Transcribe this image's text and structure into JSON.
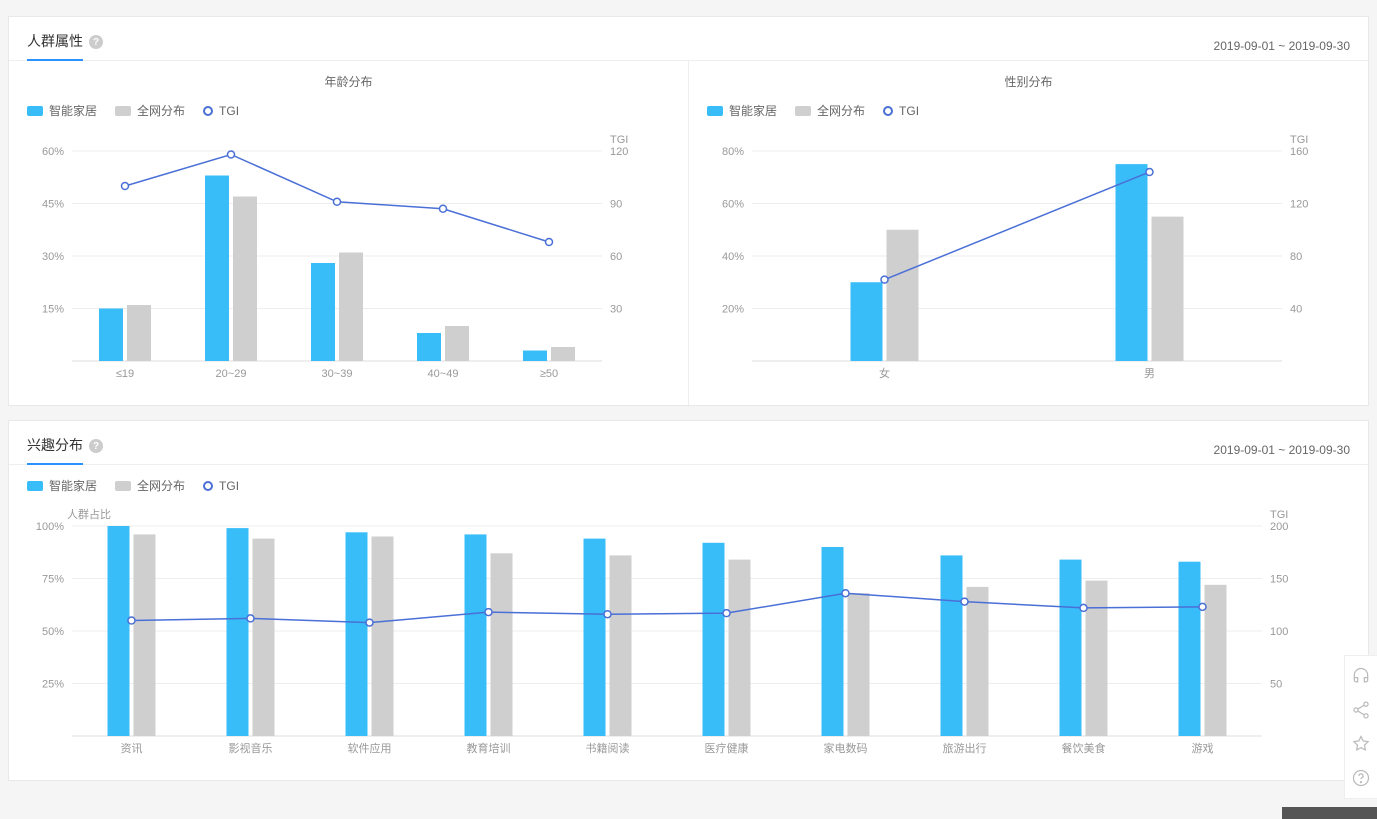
{
  "colors": {
    "series1": "#38bdf8",
    "series2": "#cfcfcf",
    "tgi": "#4a6fd6",
    "grid": "#eeeeee",
    "axis": "#999999",
    "accent": "#2b91ff"
  },
  "legend": {
    "series1": "智能家居",
    "series2": "全网分布",
    "tgi": "TGI"
  },
  "card1": {
    "title": "人群属性",
    "date": "2019-09-01 ~ 2019-09-30",
    "age_chart": {
      "subtitle": "年龄分布",
      "type": "bar+line",
      "categories": [
        "≤19",
        "20~29",
        "30~39",
        "40~49",
        "≥50"
      ],
      "series1": [
        15,
        53,
        28,
        8,
        3
      ],
      "series2": [
        16,
        47,
        31,
        10,
        4
      ],
      "tgi": [
        100,
        118,
        91,
        87,
        68
      ],
      "y_left": {
        "min": 0,
        "max": 60,
        "step": 15,
        "suffix": "%"
      },
      "y_right": {
        "label": "TGI",
        "min": 0,
        "max": 120,
        "step": 30
      }
    },
    "gender_chart": {
      "subtitle": "性别分布",
      "type": "bar+line",
      "categories": [
        "女",
        "男"
      ],
      "series1": [
        30,
        75
      ],
      "series2": [
        50,
        55
      ],
      "tgi": [
        62,
        144
      ],
      "y_left": {
        "min": 0,
        "max": 80,
        "step": 20,
        "suffix": "%"
      },
      "y_right": {
        "label": "TGI",
        "min": 0,
        "max": 160,
        "step": 40
      }
    }
  },
  "card2": {
    "title": "兴趣分布",
    "date": "2019-09-01 ~ 2019-09-30",
    "chart": {
      "type": "bar+line",
      "y_left_label": "人群占比",
      "categories": [
        "资讯",
        "影视音乐",
        "软件应用",
        "教育培训",
        "书籍阅读",
        "医疗健康",
        "家电数码",
        "旅游出行",
        "餐饮美食",
        "游戏"
      ],
      "series1": [
        100,
        99,
        97,
        96,
        94,
        92,
        90,
        86,
        84,
        83
      ],
      "series2": [
        96,
        94,
        95,
        87,
        86,
        84,
        68,
        71,
        74,
        72
      ],
      "tgi": [
        110,
        112,
        108,
        118,
        116,
        117,
        136,
        128,
        122,
        123
      ],
      "y_left": {
        "min": 0,
        "max": 100,
        "step": 25,
        "suffix": "%"
      },
      "y_right": {
        "label": "TGI",
        "min": 0,
        "max": 200,
        "step": 50
      }
    }
  }
}
